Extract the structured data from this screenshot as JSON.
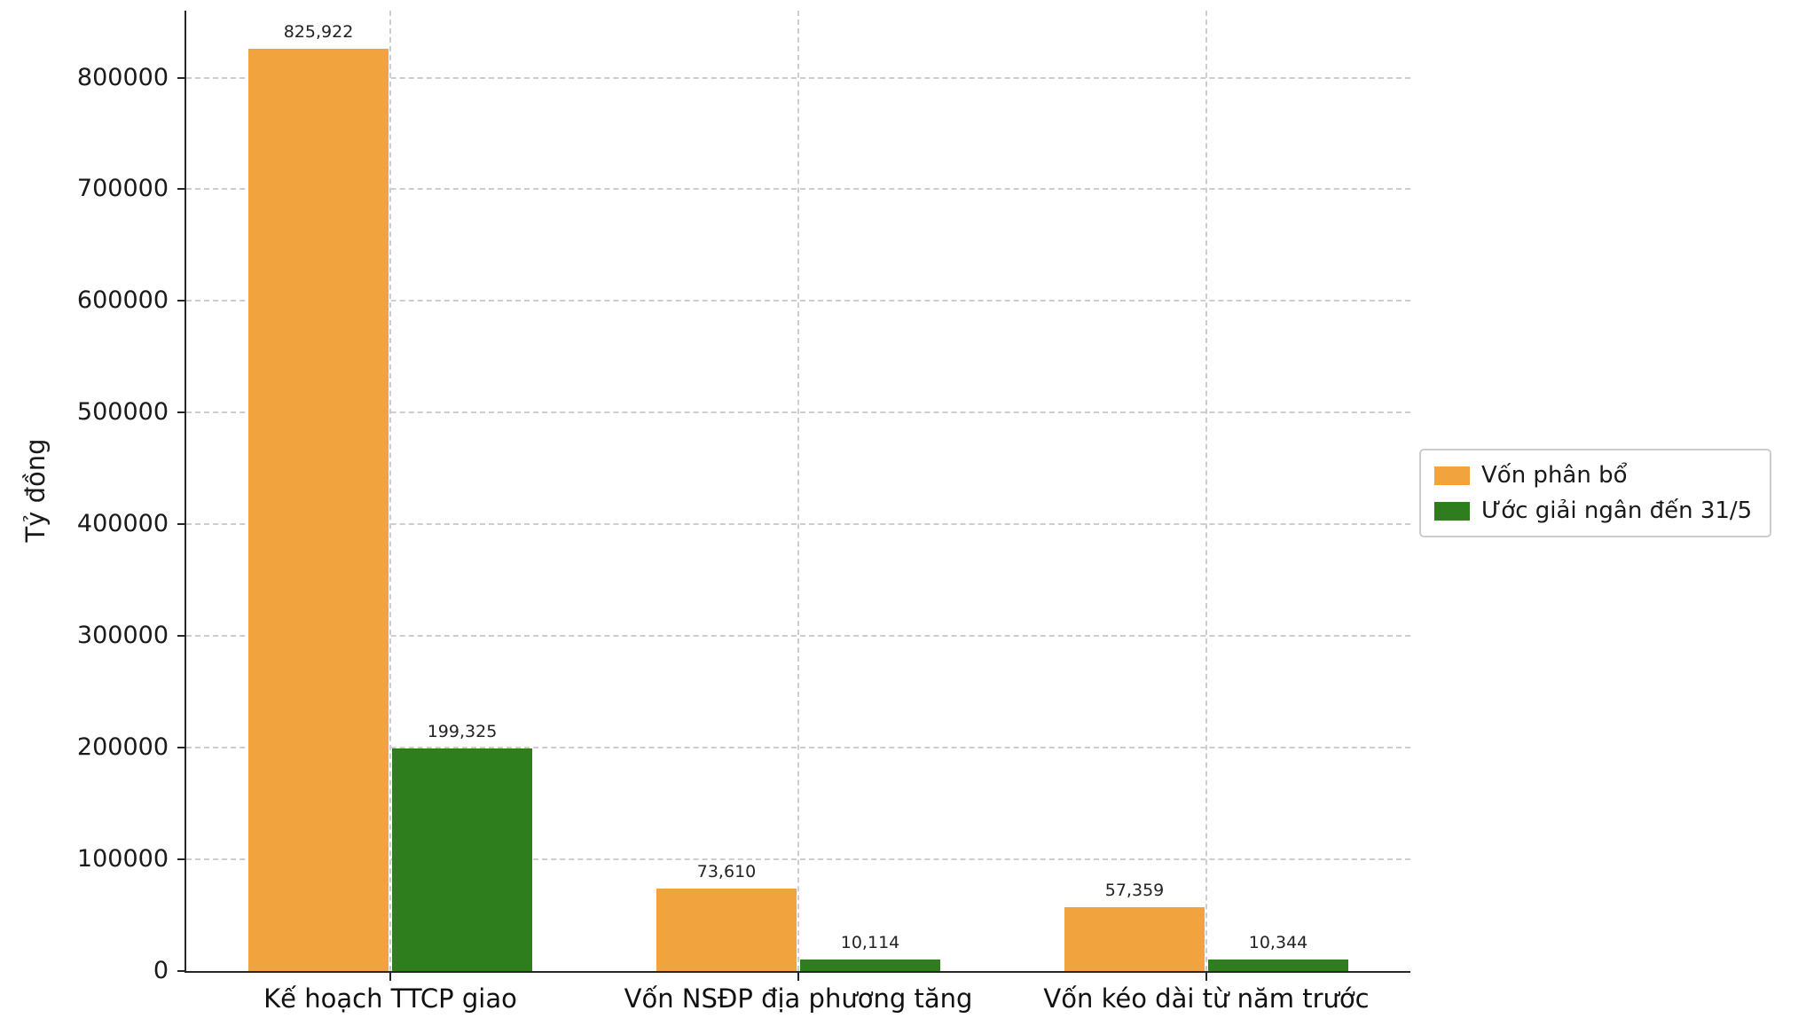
{
  "chart_data": {
    "type": "bar",
    "title": "",
    "xlabel": "",
    "ylabel": "Tỷ đồng",
    "categories": [
      "Kế hoạch TTCP giao",
      "Vốn NSĐP địa phương tăng",
      "Vốn kéo dài từ năm trước"
    ],
    "series": [
      {
        "name": "Vốn phân bổ",
        "color": "#F1A43D",
        "values": [
          825922,
          73610,
          57359
        ],
        "labels": [
          "825,922",
          "73,610",
          "57,359"
        ]
      },
      {
        "name": "Ước giải ngân đến 31/5",
        "color": "#2F7E1D",
        "values": [
          199325,
          10114,
          10344
        ],
        "labels": [
          "199,325",
          "10,114",
          "10,344"
        ]
      }
    ],
    "ylim": [
      0,
      860000
    ],
    "yticks": [
      0,
      100000,
      200000,
      300000,
      400000,
      500000,
      600000,
      700000,
      800000
    ],
    "ytick_labels": [
      "0",
      "100000",
      "200000",
      "300000",
      "400000",
      "500000",
      "600000",
      "700000",
      "800000"
    ],
    "grid": "dashed-both",
    "legend_position": "center-right",
    "colors": {
      "grid": "#cdcdcd",
      "axis": "#262626",
      "text": "#1a1a1a"
    }
  }
}
